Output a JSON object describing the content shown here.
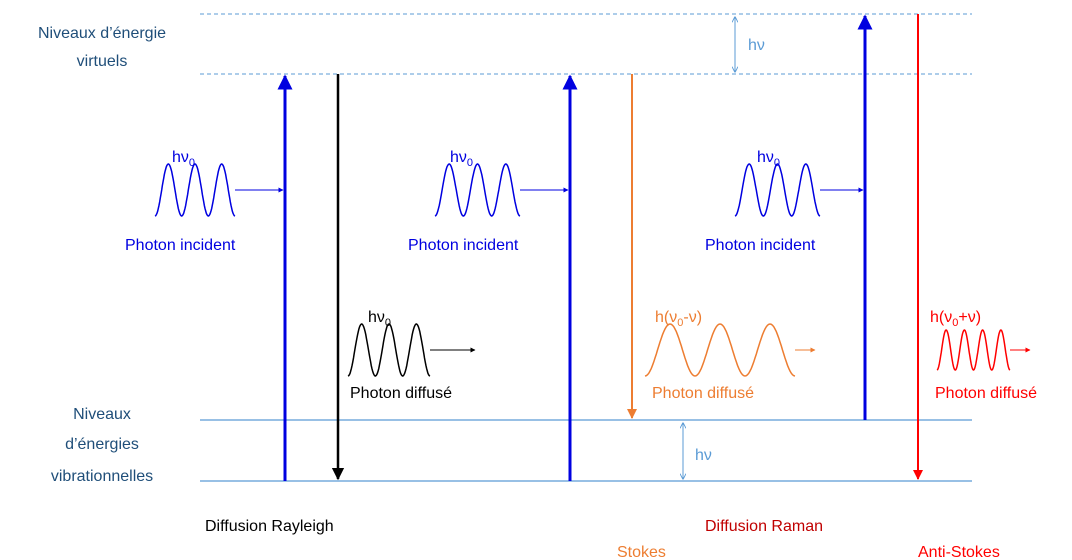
{
  "levels": {
    "virtual": [
      "Niveaux d’énergie",
      "virtuels"
    ],
    "vibrational": [
      "Niveaux",
      "d’énergies",
      "vibrationnelles"
    ]
  },
  "gap_labels": {
    "virtual": "hν",
    "vibrational": "hν"
  },
  "photons": [
    {
      "energy": [
        "hν",
        "0"
      ],
      "label": "Photon incident"
    },
    {
      "energy": [
        "hν",
        "0"
      ],
      "label": "Photon diffusé"
    },
    {
      "energy": [
        "hν",
        "0"
      ],
      "label": "Photon incident"
    },
    {
      "energy": [
        "h(ν",
        "0",
        "-ν)"
      ],
      "label": "Photon diffusé"
    },
    {
      "energy": [
        "hν",
        "0"
      ],
      "label": "Photon incident"
    },
    {
      "energy": [
        "h(ν",
        "0",
        "+ν)"
      ],
      "label": "Photon diffusé"
    }
  ],
  "captions": {
    "rayleigh": "Diffusion Rayleigh",
    "raman": "Diffusion Raman",
    "stokes": "Stokes",
    "anti_stokes": "Anti-Stokes"
  }
}
